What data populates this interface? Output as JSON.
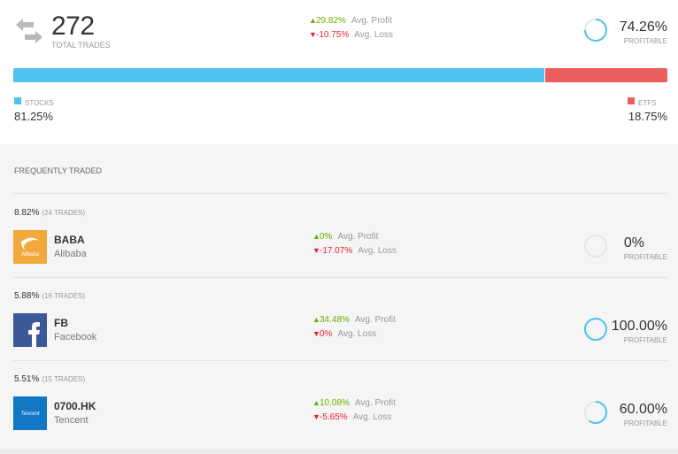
{
  "summary": {
    "total_trades": "272",
    "total_label": "TOTAL TRADES",
    "avg_profit_value": "29.82%",
    "avg_profit_label": "Avg. Profit",
    "avg_loss_value": "-10.75%",
    "avg_loss_label": "Avg. Loss",
    "profitable_pct": "74.26%",
    "profitable_fraction": 0.7426,
    "profitable_label": "PROFITABLE"
  },
  "allocation": {
    "stocks_label": "STOCKS",
    "stocks_pct": "81.25%",
    "stocks_fraction": 0.8125,
    "etfs_label": "ETFS",
    "etfs_pct": "18.75%",
    "etfs_fraction": 0.1875
  },
  "frequent": {
    "title": "FREQUENTLY TRADED",
    "items": [
      {
        "pct": "8.82%",
        "trades": "(24 TRADES)",
        "symbol": "BABA",
        "name": "Alibaba",
        "logo_text": "Alibaba",
        "avg_profit": "0%",
        "avg_loss": "-17.07%",
        "profitable": "0%",
        "profitable_fraction": 0
      },
      {
        "pct": "5.88%",
        "trades": "(16 TRADES)",
        "symbol": "FB",
        "name": "Facebook",
        "avg_profit": "34.48%",
        "avg_loss": "0%",
        "profitable": "100.00%",
        "profitable_fraction": 1.0
      },
      {
        "pct": "5.51%",
        "trades": "(15 TRADES)",
        "symbol": "0700.HK",
        "name": "Tencent",
        "logo_text": "Tencent",
        "avg_profit": "10.08%",
        "avg_loss": "-5.65%",
        "profitable": "60.00%",
        "profitable_fraction": 0.6
      }
    ],
    "avg_profit_label": "Avg. Profit",
    "avg_loss_label": "Avg. Loss",
    "profitable_label": "PROFITABLE"
  },
  "colors": {
    "stocks": "#4fc3f0",
    "etfs": "#ec5d5d",
    "up": "#6cae00",
    "down": "#e8212f",
    "ring_track": "#e6e6e6",
    "ring_fill": "#4fc3f0"
  },
  "icons": {
    "swap": "swap-arrows-icon",
    "up": "arrow-up-icon",
    "down": "arrow-down-icon"
  }
}
